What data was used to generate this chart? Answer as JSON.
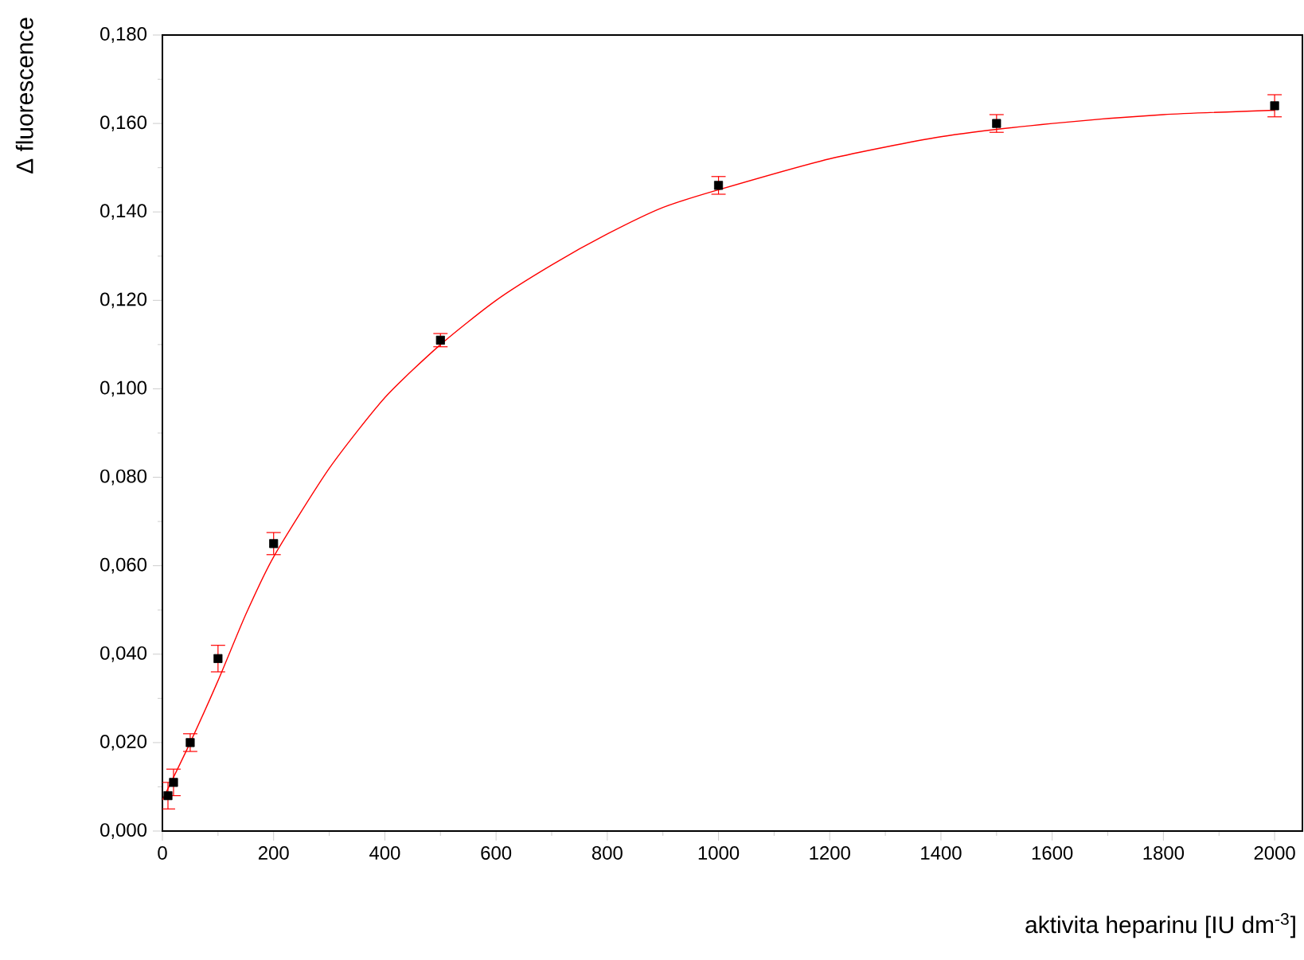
{
  "chart_data": {
    "type": "scatter",
    "xlabel": "aktivita heparinu [IU dm$^{-3}$]",
    "ylabel": "Δ fluorescence",
    "marker": "square",
    "xlim": [
      0,
      2050
    ],
    "ylim": [
      0,
      0.18
    ],
    "xticks": [
      0,
      200,
      400,
      600,
      800,
      1000,
      1200,
      1400,
      1600,
      1800,
      2000
    ],
    "yticks": [
      {
        "value": 0,
        "label": "0,000"
      },
      {
        "value": 0.02,
        "label": "0,020"
      },
      {
        "value": 0.04,
        "label": "0,040"
      },
      {
        "value": 0.06,
        "label": "0,060"
      },
      {
        "value": 0.08,
        "label": "0,080"
      },
      {
        "value": 0.1,
        "label": "0,100"
      },
      {
        "value": 0.12,
        "label": "0,120"
      },
      {
        "value": 0.14,
        "label": "0,140"
      },
      {
        "value": 0.16,
        "label": "0,160"
      },
      {
        "value": 0.18,
        "label": "0,180"
      }
    ],
    "series": [
      {
        "color": "#000000",
        "x": [
          10,
          20,
          50,
          100,
          200,
          500,
          1000,
          1500,
          2000
        ],
        "values": [
          0.008,
          0.011,
          0.02,
          0.039,
          0.065,
          0.111,
          0.146,
          0.16,
          0.164
        ],
        "errors": [
          0.003,
          0.003,
          0.002,
          0.003,
          0.0025,
          0.0015,
          0.002,
          0.002,
          0.0025
        ]
      },
      {
        "type": "line",
        "marker": "none",
        "color": "#ff0000",
        "x": [
          0,
          50,
          100,
          150,
          200,
          300,
          400,
          500,
          600,
          700,
          800,
          900,
          1000,
          1200,
          1400,
          1600,
          1800,
          2000
        ],
        "values": [
          0.007,
          0.02,
          0.034,
          0.049,
          0.062,
          0.082,
          0.098,
          0.11,
          0.12,
          0.128,
          0.135,
          0.141,
          0.145,
          0.152,
          0.157,
          0.16,
          0.162,
          0.163
        ]
      }
    ]
  }
}
